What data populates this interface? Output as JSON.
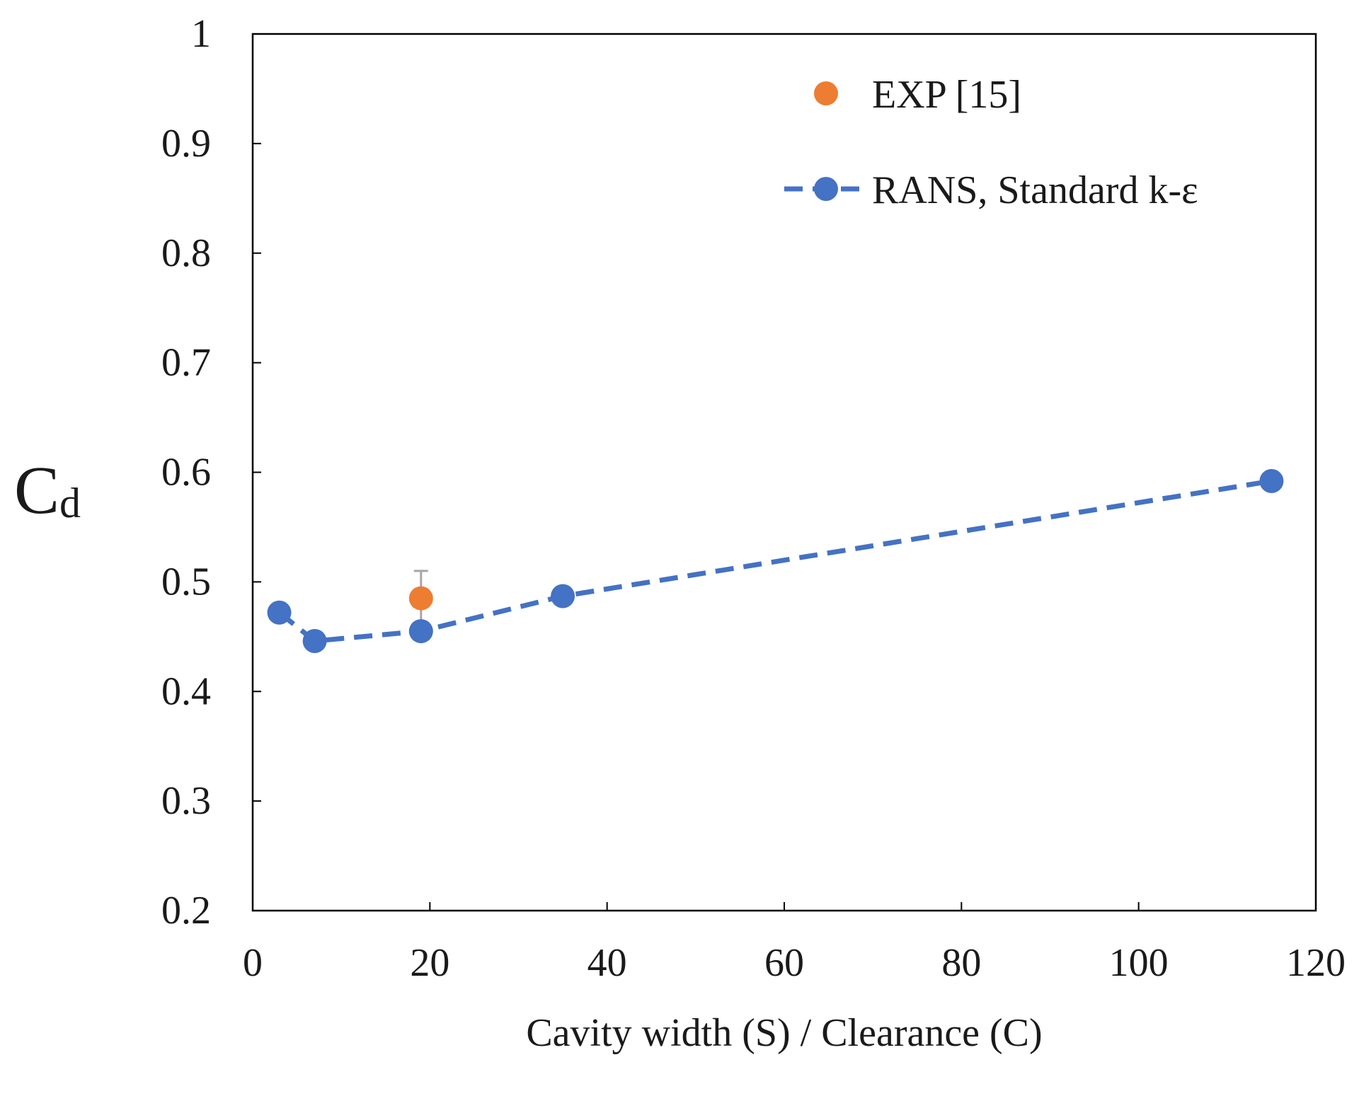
{
  "chart_data": {
    "type": "scatter",
    "xlabel": "Cavity width (S) /  Clearance (C)",
    "ylabel": {
      "main": "C",
      "subscript": "d"
    },
    "xlim": [
      0,
      120
    ],
    "ylim": [
      0.2,
      1.0
    ],
    "xticks": [
      0,
      20,
      40,
      60,
      80,
      100,
      120
    ],
    "yticks": [
      0.2,
      0.3,
      0.4,
      0.5,
      0.6,
      0.7,
      0.8,
      0.9,
      1.0
    ],
    "xtick_labels": [
      "0",
      "20",
      "40",
      "60",
      "80",
      "100",
      "120"
    ],
    "ytick_labels": [
      "0.2",
      "0.3",
      "0.4",
      "0.5",
      "0.6",
      "0.7",
      "0.8",
      "0.9",
      "1"
    ],
    "grid": false,
    "legend_position": "top-right",
    "series": [
      {
        "name": "EXP [15]",
        "style": "markers",
        "color": "#ED7D31",
        "points": [
          {
            "x": 19,
            "y": 0.485,
            "err_upper": 0.51,
            "err_lower": 0.465
          }
        ]
      },
      {
        "name": "RANS, Standard k-ε",
        "style": "dashed-line-markers",
        "color": "#4472C4",
        "points": [
          {
            "x": 3,
            "y": 0.472
          },
          {
            "x": 7,
            "y": 0.446
          },
          {
            "x": 19,
            "y": 0.455
          },
          {
            "x": 35,
            "y": 0.487
          },
          {
            "x": 115,
            "y": 0.592
          }
        ]
      }
    ],
    "colors": {
      "axis": "#000000",
      "errorbar": "#A6A6A6"
    }
  }
}
